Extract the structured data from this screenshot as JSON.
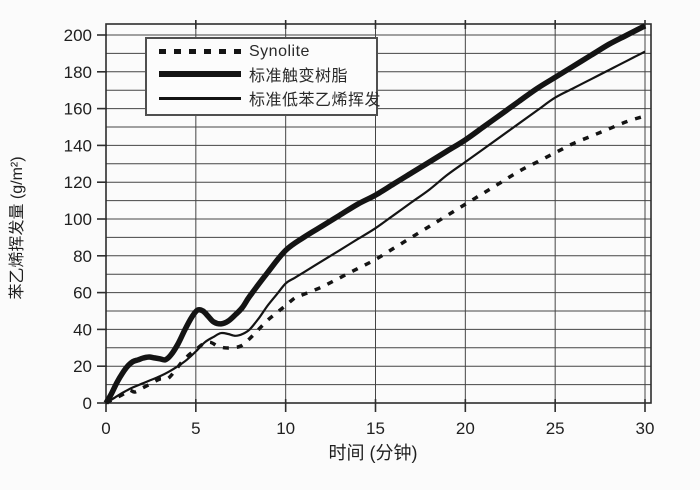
{
  "figure": {
    "background": "#fbfbfb",
    "plot_background": "#fbfbfb",
    "line_color": "#141414",
    "grid_color": "#454545",
    "border_color": "#2e2e2e",
    "text_color": "#1f1f1f"
  },
  "chart_data": {
    "type": "line",
    "title": "",
    "xlabel": "时间 (分钟)",
    "ylabel": "苯乙烯挥发量 (g/m²)",
    "xlim": [
      0,
      30
    ],
    "ylim": [
      0,
      200
    ],
    "x_ticks": [
      0,
      5,
      10,
      15,
      20,
      25,
      30
    ],
    "y_ticks": [
      0,
      20,
      40,
      60,
      80,
      100,
      120,
      140,
      160,
      180,
      200
    ],
    "grid": {
      "x_interval": 5,
      "y_interval": 10,
      "visible": true
    },
    "legend_position": "top-left-inside",
    "series": [
      {
        "name": "Synolite",
        "style": "dashed",
        "stroke_width": 3.5,
        "points": [
          [
            0,
            0
          ],
          [
            0.5,
            2.5
          ],
          [
            1,
            5
          ],
          [
            1.3,
            7
          ],
          [
            1.6,
            6
          ],
          [
            2,
            8
          ],
          [
            2.5,
            10.5
          ],
          [
            3,
            13
          ],
          [
            3.4,
            13
          ],
          [
            3.8,
            17
          ],
          [
            4.2,
            22
          ],
          [
            4.6,
            26
          ],
          [
            5,
            29
          ],
          [
            5.4,
            32
          ],
          [
            5.8,
            33
          ],
          [
            6.2,
            31
          ],
          [
            6.6,
            30
          ],
          [
            7,
            30
          ],
          [
            7.5,
            31
          ],
          [
            8,
            35
          ],
          [
            8.5,
            40
          ],
          [
            9,
            45
          ],
          [
            9.5,
            49
          ],
          [
            10,
            53
          ],
          [
            10.5,
            57
          ],
          [
            11,
            59
          ],
          [
            12,
            63
          ],
          [
            13,
            68
          ],
          [
            14,
            73
          ],
          [
            15,
            78
          ],
          [
            16,
            84
          ],
          [
            17,
            90
          ],
          [
            18,
            96
          ],
          [
            19,
            102
          ],
          [
            20,
            108
          ],
          [
            21,
            114
          ],
          [
            22,
            120
          ],
          [
            23,
            126
          ],
          [
            24,
            131
          ],
          [
            25,
            136
          ],
          [
            26,
            141
          ],
          [
            27,
            145
          ],
          [
            28,
            149
          ],
          [
            29,
            153
          ],
          [
            30,
            156
          ]
        ]
      },
      {
        "name": "标准触变树脂",
        "style": "solid-thick",
        "stroke_width": 5.5,
        "points": [
          [
            0,
            0
          ],
          [
            0.3,
            5
          ],
          [
            0.6,
            11
          ],
          [
            0.9,
            16
          ],
          [
            1.2,
            20
          ],
          [
            1.5,
            22.5
          ],
          [
            1.8,
            23.5
          ],
          [
            2.1,
            24.5
          ],
          [
            2.4,
            25
          ],
          [
            2.7,
            24.5
          ],
          [
            3,
            24
          ],
          [
            3.3,
            23.5
          ],
          [
            3.6,
            26
          ],
          [
            4,
            32
          ],
          [
            4.4,
            40
          ],
          [
            4.8,
            47
          ],
          [
            5.1,
            50.5
          ],
          [
            5.4,
            50
          ],
          [
            5.7,
            47
          ],
          [
            6,
            44
          ],
          [
            6.4,
            43
          ],
          [
            6.8,
            44.5
          ],
          [
            7.2,
            48
          ],
          [
            7.6,
            52
          ],
          [
            8,
            58
          ],
          [
            9,
            71
          ],
          [
            10,
            83
          ],
          [
            11,
            90
          ],
          [
            12,
            96
          ],
          [
            13,
            102
          ],
          [
            14,
            108
          ],
          [
            15,
            113
          ],
          [
            16,
            119
          ],
          [
            17,
            125
          ],
          [
            18,
            131
          ],
          [
            19,
            137
          ],
          [
            20,
            143
          ],
          [
            21,
            150
          ],
          [
            22,
            157
          ],
          [
            23,
            164
          ],
          [
            24,
            171
          ],
          [
            25,
            177
          ],
          [
            26,
            183
          ],
          [
            27,
            189
          ],
          [
            28,
            195
          ],
          [
            29,
            200
          ],
          [
            30,
            205
          ]
        ]
      },
      {
        "name": "标准低苯乙烯挥发",
        "style": "solid-thin",
        "stroke_width": 2.2,
        "points": [
          [
            0,
            0
          ],
          [
            0.5,
            3
          ],
          [
            1,
            6
          ],
          [
            1.5,
            8.5
          ],
          [
            2,
            10.5
          ],
          [
            2.5,
            12.5
          ],
          [
            3,
            14.5
          ],
          [
            3.5,
            17
          ],
          [
            4,
            20
          ],
          [
            4.5,
            23.5
          ],
          [
            5,
            28
          ],
          [
            5.5,
            33
          ],
          [
            6,
            36
          ],
          [
            6.4,
            38
          ],
          [
            6.8,
            37.5
          ],
          [
            7.2,
            36.5
          ],
          [
            7.6,
            37.5
          ],
          [
            8,
            40
          ],
          [
            8.5,
            46
          ],
          [
            9,
            53
          ],
          [
            9.5,
            59
          ],
          [
            10,
            65
          ],
          [
            10.5,
            68
          ],
          [
            11,
            71
          ],
          [
            12,
            77
          ],
          [
            13,
            83
          ],
          [
            14,
            89
          ],
          [
            15,
            95
          ],
          [
            16,
            102
          ],
          [
            17,
            109
          ],
          [
            18,
            116
          ],
          [
            19,
            124
          ],
          [
            20,
            131
          ],
          [
            21,
            138
          ],
          [
            22,
            145
          ],
          [
            23,
            152
          ],
          [
            24,
            159
          ],
          [
            25,
            166
          ],
          [
            26,
            171
          ],
          [
            27,
            176
          ],
          [
            28,
            181
          ],
          [
            29,
            186
          ],
          [
            30,
            191
          ]
        ]
      }
    ]
  },
  "legend": {
    "entries": [
      {
        "label": "Synolite"
      },
      {
        "label": "标准触变树脂"
      },
      {
        "label": "标准低苯乙烯挥发"
      }
    ]
  }
}
